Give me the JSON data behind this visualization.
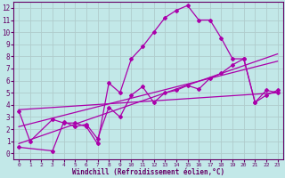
{
  "xlabel": "Windchill (Refroidissement éolien,°C)",
  "bg_color": "#c2e8e8",
  "grid_color": "#b0cccc",
  "line_color": "#aa00aa",
  "axis_color": "#880088",
  "text_color": "#660066",
  "xlim": [
    -0.5,
    23.5
  ],
  "ylim": [
    -0.5,
    12.5
  ],
  "xticks": [
    0,
    1,
    2,
    3,
    4,
    5,
    6,
    7,
    8,
    9,
    10,
    11,
    12,
    13,
    14,
    15,
    16,
    17,
    18,
    19,
    20,
    21,
    22,
    23
  ],
  "yticks": [
    0,
    1,
    2,
    3,
    4,
    5,
    6,
    7,
    8,
    9,
    10,
    11,
    12
  ],
  "line1_x": [
    0,
    1,
    3,
    4,
    5,
    6,
    7,
    8,
    9,
    10,
    11,
    12,
    13,
    14,
    15,
    16,
    17,
    18,
    19,
    20,
    21,
    22,
    23
  ],
  "line1_y": [
    3.5,
    1.0,
    2.8,
    2.5,
    2.5,
    2.2,
    0.8,
    5.8,
    5.0,
    7.8,
    8.8,
    10.0,
    11.2,
    11.8,
    12.2,
    11.0,
    11.0,
    9.5,
    7.8,
    7.8,
    4.2,
    5.2,
    5.0
  ],
  "line2_x": [
    0,
    3,
    4,
    5,
    6,
    7,
    8,
    9,
    10,
    11,
    12,
    13,
    14,
    15,
    16,
    17,
    18,
    19,
    20,
    21,
    22,
    23
  ],
  "line2_y": [
    0.5,
    0.2,
    2.6,
    2.2,
    2.4,
    1.2,
    3.8,
    3.0,
    4.8,
    5.5,
    4.2,
    5.0,
    5.2,
    5.6,
    5.3,
    6.2,
    6.6,
    7.3,
    7.8,
    4.2,
    4.8,
    5.2
  ],
  "line3_x": [
    0,
    23
  ],
  "line3_y": [
    0.8,
    8.2
  ],
  "line4_x": [
    0,
    23
  ],
  "line4_y": [
    2.2,
    7.6
  ],
  "line5_x": [
    0,
    23
  ],
  "line5_y": [
    3.6,
    5.0
  ],
  "marker": "D",
  "markersize": 2,
  "linewidth": 0.9
}
